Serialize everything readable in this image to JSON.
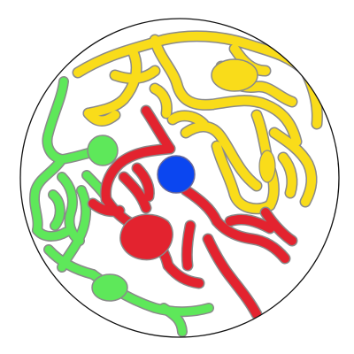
{
  "image": {
    "kind": "circular maze / territory illustration",
    "background": "#ffffff",
    "boundary_stroke": "#111111"
  },
  "regions": [
    {
      "name": "yellow",
      "color": "#f9dc1a"
    },
    {
      "name": "green",
      "color": "#5ee85a"
    },
    {
      "name": "red",
      "color": "#e3232f"
    },
    {
      "name": "blue",
      "color": "#0b46f0"
    }
  ]
}
